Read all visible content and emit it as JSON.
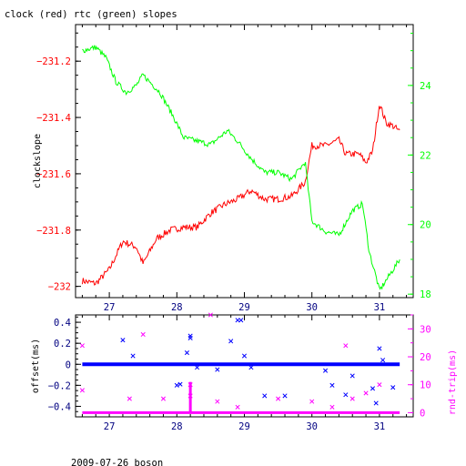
{
  "title": "clock (red) rtc (green) slopes",
  "footer": "2009-07-26 boson",
  "colors": {
    "clock": "#ff0000",
    "rtc": "#00ff00",
    "offset": "#0000ff",
    "roundtrip": "#ff00ff",
    "axis": "#000000"
  },
  "chart_data": [
    {
      "type": "line",
      "title": "clock (red) rtc (green) slopes",
      "xlabel": "",
      "ylabel": "clockslope",
      "y2label": "",
      "xlim": [
        26.5,
        31.5
      ],
      "ylim": [
        -232.04,
        -231.07
      ],
      "y2lim": [
        17.9,
        25.75
      ],
      "x_ticks": [
        "27",
        "28",
        "29",
        "30",
        "31"
      ],
      "y_ticks": [
        "-231.2",
        "-231.4",
        "-231.6",
        "-231.8",
        "-232"
      ],
      "y2_ticks": [
        "24",
        "22",
        "20",
        "18"
      ],
      "grid": false,
      "series": [
        {
          "name": "clock",
          "axis": "left",
          "x": [
            26.6,
            26.8,
            27.0,
            27.2,
            27.4,
            27.5,
            27.7,
            27.9,
            28.1,
            28.3,
            28.5,
            28.7,
            28.9,
            29.1,
            29.3,
            29.5,
            29.7,
            29.9,
            30.0,
            30.2,
            30.4,
            30.5,
            30.7,
            30.8,
            30.9,
            31.0,
            31.1,
            31.2,
            31.3
          ],
          "y": [
            -231.98,
            -231.99,
            -231.94,
            -231.84,
            -231.86,
            -231.92,
            -231.83,
            -231.8,
            -231.79,
            -231.79,
            -231.74,
            -231.71,
            -231.69,
            -231.66,
            -231.69,
            -231.69,
            -231.68,
            -231.63,
            -231.5,
            -231.5,
            -231.48,
            -231.53,
            -231.53,
            -231.56,
            -231.52,
            -231.35,
            -231.42,
            -231.43,
            -231.45
          ]
        },
        {
          "name": "rtc",
          "axis": "right",
          "x": [
            26.6,
            26.8,
            26.95,
            27.1,
            27.25,
            27.4,
            27.5,
            27.75,
            27.95,
            28.1,
            28.3,
            28.5,
            28.75,
            28.9,
            29.1,
            29.3,
            29.5,
            29.7,
            29.9,
            30.0,
            30.2,
            30.4,
            30.6,
            30.75,
            30.85,
            30.95,
            31.0,
            31.1,
            31.3
          ],
          "y": [
            25.0,
            25.1,
            24.8,
            24.1,
            23.8,
            24.0,
            24.3,
            23.8,
            23.1,
            22.5,
            22.4,
            22.3,
            22.7,
            22.4,
            21.9,
            21.5,
            21.5,
            21.3,
            21.8,
            20.1,
            19.8,
            19.7,
            20.4,
            20.6,
            19.2,
            18.5,
            18.1,
            18.4,
            19.0
          ]
        }
      ]
    },
    {
      "type": "scatter",
      "ylabel": "offset(ms)",
      "y2label": "rnd-trip(ms)",
      "xlim": [
        26.5,
        31.5
      ],
      "ylim": [
        -0.5,
        0.47
      ],
      "y2lim": [
        -1.5,
        35
      ],
      "x_ticks": [
        "27",
        "28",
        "29",
        "30",
        "31"
      ],
      "y_ticks": [
        "0.4",
        "0.2",
        "0",
        "-0.2",
        "-0.4"
      ],
      "y2_ticks": [
        "30",
        "20",
        "10",
        "0"
      ],
      "grid": false,
      "series": [
        {
          "name": "offset",
          "axis": "left",
          "marker": "x",
          "x": [
            27.2,
            27.35,
            28.0,
            28.05,
            28.15,
            28.2,
            28.2,
            28.3,
            28.6,
            28.8,
            28.9,
            28.95,
            29.0,
            29.1,
            29.3,
            29.6,
            30.2,
            30.3,
            30.5,
            30.6,
            30.9,
            30.95,
            31.0,
            31.05,
            31.2
          ],
          "y": [
            0.23,
            0.08,
            -0.2,
            -0.19,
            0.11,
            0.27,
            0.25,
            -0.03,
            -0.05,
            0.22,
            0.42,
            0.42,
            0.08,
            -0.03,
            -0.3,
            -0.3,
            -0.06,
            -0.2,
            -0.29,
            -0.11,
            -0.23,
            -0.37,
            0.15,
            0.04,
            -0.22
          ]
        },
        {
          "name": "roundtrip",
          "axis": "right",
          "marker": "x",
          "x": [
            26.6,
            26.6,
            27.3,
            27.5,
            27.8,
            28.2,
            28.2,
            28.5,
            28.6,
            28.9,
            29.5,
            30.0,
            30.3,
            30.5,
            30.6,
            30.8,
            31.0
          ],
          "y": [
            24,
            8,
            5,
            28,
            5,
            10,
            6,
            35,
            4,
            2,
            5,
            4,
            2,
            24,
            5,
            7,
            10
          ]
        }
      ]
    }
  ]
}
